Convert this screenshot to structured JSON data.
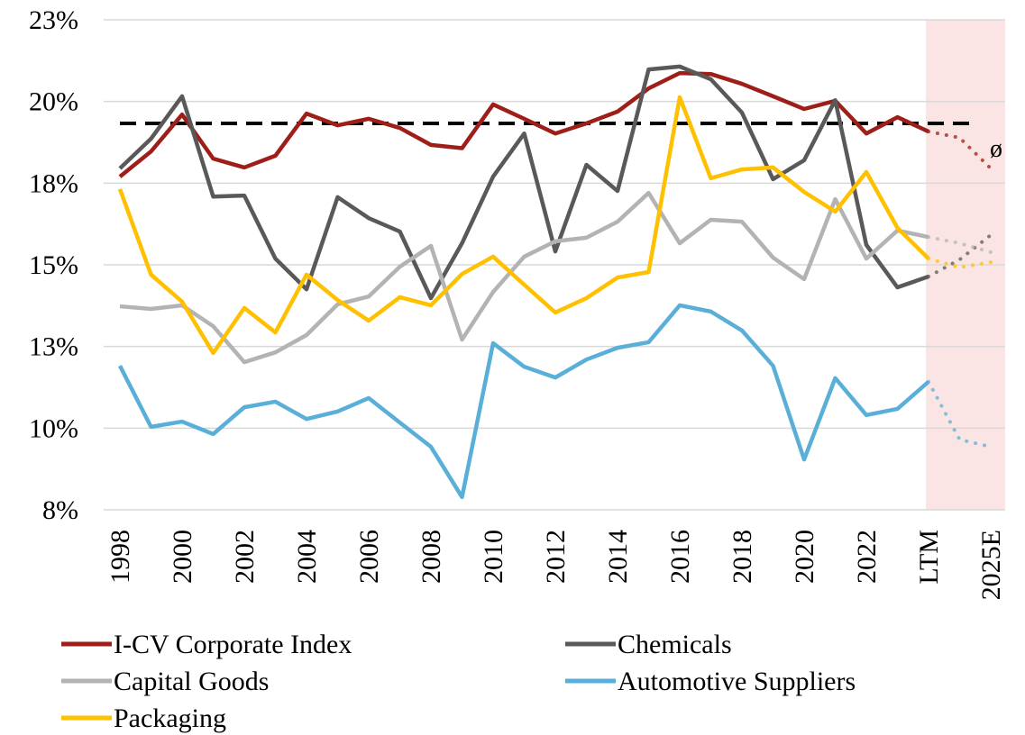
{
  "chart_data": {
    "type": "line",
    "categories": [
      "1998",
      null,
      "2000",
      null,
      "2002",
      null,
      "2004",
      null,
      "2006",
      null,
      "2008",
      null,
      "2010",
      null,
      "2012",
      null,
      "2014",
      null,
      "2016",
      null,
      "2018",
      null,
      "2020",
      null,
      "2022",
      null,
      "LTM",
      null,
      "2025E"
    ],
    "forecast_from": "LTM",
    "ylim": [
      7.5,
      22.5
    ],
    "yticks": [
      {
        "value": 7.5,
        "label": "8%"
      },
      {
        "value": 10,
        "label": "10%"
      },
      {
        "value": 12.5,
        "label": "13%"
      },
      {
        "value": 15,
        "label": "15%"
      },
      {
        "value": 17.5,
        "label": "18%"
      },
      {
        "value": 20,
        "label": "20%"
      },
      {
        "value": 22.5,
        "label": "23%"
      }
    ],
    "grid": true,
    "average": {
      "value": 19.33,
      "label": "ø",
      "color": "#000000"
    },
    "series": [
      {
        "name": "I-CV Corporate Index",
        "color": "#9e1f1a",
        "values": [
          17.7,
          18.47,
          19.6,
          18.25,
          17.98,
          18.34,
          19.63,
          19.27,
          19.47,
          19.19,
          18.67,
          18.57,
          19.91,
          19.47,
          19.02,
          19.33,
          19.69,
          20.4,
          20.87,
          20.84,
          20.54,
          20.16,
          19.77,
          20.02,
          19.02,
          19.52,
          19.08,
          18.89,
          17.95
        ]
      },
      {
        "name": "Chemicals",
        "color": "#595959",
        "values": [
          17.95,
          18.86,
          20.16,
          17.09,
          17.12,
          15.19,
          14.25,
          17.07,
          16.43,
          16.02,
          13.98,
          15.66,
          17.7,
          19.02,
          15.41,
          18.06,
          17.26,
          20.98,
          21.07,
          20.68,
          19.66,
          17.62,
          18.2,
          20.04,
          15.61,
          14.31,
          14.64,
          15.16,
          15.91
        ]
      },
      {
        "name": "Capital Goods",
        "color": "#b3b3b3",
        "values": [
          13.73,
          13.65,
          13.76,
          13.12,
          12.02,
          12.32,
          12.85,
          13.79,
          14.03,
          14.94,
          15.58,
          12.71,
          14.17,
          15.25,
          15.72,
          15.83,
          16.32,
          17.2,
          15.66,
          16.38,
          16.32,
          15.22,
          14.56,
          17.01,
          15.19,
          16.05,
          15.85,
          15.66,
          15.39
        ]
      },
      {
        "name": "Automotive Suppliers",
        "color": "#5aafd8",
        "values": [
          11.91,
          10.04,
          10.2,
          9.82,
          10.64,
          10.81,
          10.28,
          10.51,
          10.92,
          10.17,
          9.43,
          7.89,
          12.6,
          11.88,
          11.55,
          12.1,
          12.46,
          12.63,
          13.76,
          13.57,
          12.99,
          11.91,
          9.04,
          11.53,
          10.4,
          10.59,
          11.42,
          9.65,
          9.43
        ]
      },
      {
        "name": "Packaging",
        "color": "#ffc000",
        "values": [
          17.32,
          14.7,
          13.87,
          12.3,
          13.68,
          12.93,
          14.7,
          13.92,
          13.29,
          14.01,
          13.76,
          14.72,
          15.25,
          14.39,
          13.54,
          13.98,
          14.61,
          14.78,
          20.13,
          17.65,
          17.92,
          17.98,
          17.23,
          16.63,
          17.84,
          16.13,
          15.19,
          14.92,
          15.08
        ]
      }
    ]
  }
}
